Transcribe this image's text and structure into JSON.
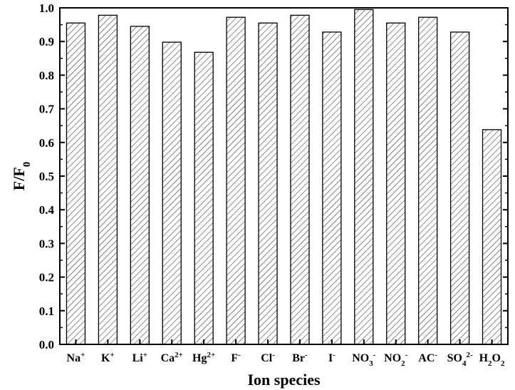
{
  "chart_data": {
    "type": "bar",
    "categories": [
      {
        "base": "Na",
        "sup": "+",
        "sub": ""
      },
      {
        "base": "K",
        "sup": "+",
        "sub": ""
      },
      {
        "base": "Li",
        "sup": "+",
        "sub": ""
      },
      {
        "base": "Ca",
        "sup": "2+",
        "sub": ""
      },
      {
        "base": "Hg",
        "sup": "2+",
        "sub": ""
      },
      {
        "base": "F",
        "sup": "-",
        "sub": ""
      },
      {
        "base": "Cl",
        "sup": "-",
        "sub": ""
      },
      {
        "base": "Br",
        "sup": "-",
        "sub": ""
      },
      {
        "base": "I",
        "sup": "-",
        "sub": ""
      },
      {
        "base": "NO",
        "sub": "3",
        "sup": "-"
      },
      {
        "base": "NO",
        "sub": "2",
        "sup": "-"
      },
      {
        "base": "AC",
        "sup": "-",
        "sub": ""
      },
      {
        "base": "SO",
        "sub": "4",
        "sup": "2-"
      },
      {
        "base": "H",
        "sub": "2",
        "tail": "O",
        "tail_sub": "2",
        "sup": ""
      }
    ],
    "values": [
      0.955,
      0.978,
      0.945,
      0.898,
      0.868,
      0.972,
      0.955,
      0.978,
      0.928,
      0.995,
      0.955,
      0.972,
      0.928,
      0.638
    ],
    "xlabel": "Ion species",
    "ylabel": {
      "base": "F/F",
      "sub": "0"
    },
    "ylim": [
      0.0,
      1.0
    ],
    "yticks": [
      "0.0",
      "0.1",
      "0.2",
      "0.3",
      "0.4",
      "0.5",
      "0.6",
      "0.7",
      "0.8",
      "0.9",
      "1.0"
    ],
    "bar_fill": "hatched-diagonal",
    "grid": false,
    "legend": "none",
    "colors": {
      "bar_stroke": "#000000",
      "hatch": "#000000",
      "background": "#ffffff"
    }
  }
}
